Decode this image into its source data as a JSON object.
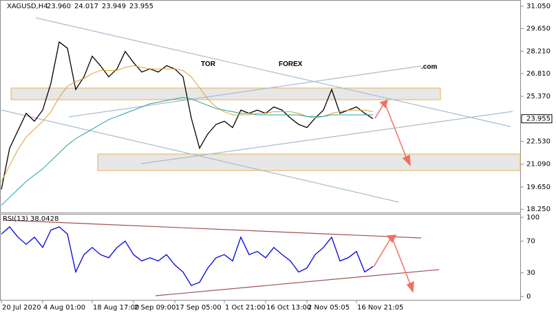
{
  "chart_data": [
    {
      "type": "line",
      "title": "XAGUSD,H4",
      "quote": [
        "23.960",
        "24.017",
        "23.949",
        "23.955"
      ],
      "categories": [
        "20 Jul 2020",
        null,
        null,
        null,
        null,
        "4 Aug 01:00",
        null,
        null,
        null,
        null,
        null,
        "18 Aug 17:00",
        null,
        null,
        null,
        null,
        "2 Sep 09:00",
        null,
        null,
        null,
        null,
        "17 Sep 05:00",
        null,
        null,
        null,
        null,
        null,
        "1 Oct 21:00",
        null,
        null,
        null,
        null,
        "16 Oct 13:00",
        null,
        null,
        null,
        null,
        "2 Nov 05:05",
        null,
        null,
        null,
        null,
        null,
        "16 Nov 21:05",
        null,
        null
      ],
      "series": [
        {
          "color": "#000000",
          "values": [
            19.5,
            22.1,
            23.2,
            24.3,
            23.8,
            24.5,
            26.2,
            28.8,
            28.4,
            25.8,
            26.6,
            27.9,
            27.3,
            26.6,
            27.1,
            28.2,
            27.5,
            26.9,
            27.1,
            26.9,
            27.3,
            27.1,
            26.6,
            24.0,
            22.1,
            23.0,
            23.6,
            23.8,
            23.4,
            24.5,
            24.3,
            24.5,
            24.3,
            24.7,
            24.5,
            24.0,
            23.6,
            23.4,
            24.0,
            24.5,
            25.8,
            24.3,
            24.5,
            24.7,
            24.3,
            23.955
          ]
        },
        {
          "color": "#e0a030",
          "values": [
            20.0,
            21.0,
            22.0,
            22.8,
            23.3,
            23.8,
            24.4,
            25.3,
            26.0,
            26.3,
            26.5,
            26.8,
            27.0,
            27.0,
            27.0,
            27.2,
            27.3,
            27.2,
            27.1,
            27.1,
            27.1,
            27.1,
            27.0,
            26.6,
            25.9,
            25.2,
            24.7,
            24.4,
            24.2,
            24.2,
            24.2,
            24.3,
            24.3,
            24.4,
            24.4,
            24.4,
            24.3,
            24.1,
            24.0,
            24.1,
            24.3,
            24.4,
            24.5,
            24.5,
            24.5,
            24.4
          ]
        },
        {
          "color": "#20a0a0",
          "values": [
            18.5,
            19.0,
            19.5,
            20.0,
            20.4,
            20.8,
            21.3,
            21.8,
            22.3,
            22.7,
            23.0,
            23.3,
            23.6,
            23.9,
            24.1,
            24.3,
            24.5,
            24.7,
            24.9,
            25.0,
            25.1,
            25.2,
            25.3,
            25.2,
            25.0,
            24.8,
            24.6,
            24.5,
            24.4,
            24.3,
            24.3,
            24.2,
            24.2,
            24.2,
            24.2,
            24.2,
            24.2,
            24.1,
            24.1,
            24.1,
            24.2,
            24.2,
            24.2,
            24.2,
            24.2,
            24.2
          ]
        }
      ],
      "ylim": [
        18.0,
        31.4
      ],
      "yticks": [
        {
          "value": 31.05,
          "label": "31.050"
        },
        {
          "value": 29.65,
          "label": "29.650"
        },
        {
          "value": 28.21,
          "label": "28.210"
        },
        {
          "value": 26.81,
          "label": "26.810"
        },
        {
          "value": 25.37,
          "label": "25.370"
        },
        {
          "value": 22.53,
          "label": "22.530"
        },
        {
          "value": 21.09,
          "label": "21.090"
        },
        {
          "value": 19.65,
          "label": "19.650"
        },
        {
          "value": 18.25,
          "label": "18.250"
        }
      ],
      "last_price": {
        "value": 23.955,
        "label": "23.955"
      }
    },
    {
      "type": "line",
      "title": "RSI(13) 38.0428",
      "series": [
        {
          "color": "#0000dd",
          "values": [
            79,
            88,
            75,
            66,
            75,
            62,
            84,
            88,
            79,
            31,
            53,
            62,
            53,
            49,
            62,
            70,
            53,
            45,
            49,
            45,
            53,
            40,
            31,
            14,
            18,
            36,
            49,
            53,
            45,
            75,
            53,
            57,
            49,
            62,
            53,
            45,
            31,
            36,
            53,
            62,
            75,
            45,
            49,
            57,
            31,
            38
          ]
        }
      ],
      "ylim": [
        -5,
        103.5
      ],
      "yticks": [
        100,
        70,
        30,
        0
      ]
    }
  ],
  "watermark": {
    "left": "TOR",
    "middle": "FOREX",
    "right": ".com"
  }
}
